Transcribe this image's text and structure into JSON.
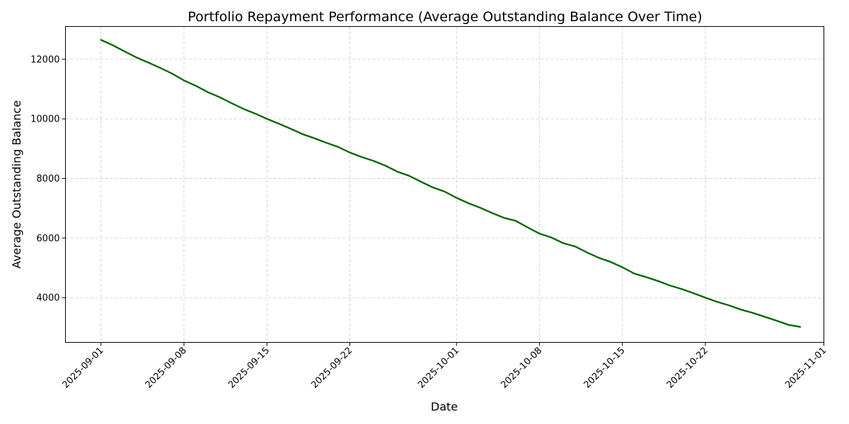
{
  "chart_data": {
    "type": "line",
    "title": "Portfolio Repayment Performance (Average Outstanding Balance Over Time)",
    "xlabel": "Date",
    "ylabel": "Average Outstanding Balance",
    "xlim": [
      "2025-08-29",
      "2025-11-01"
    ],
    "ylim": [
      2500,
      13100
    ],
    "grid": true,
    "line_color": "#006400",
    "x_ticks": [
      "2025-09-01",
      "2025-09-08",
      "2025-09-15",
      "2025-09-22",
      "2025-10-01",
      "2025-10-08",
      "2025-10-15",
      "2025-10-22",
      "2025-11-01"
    ],
    "y_ticks": [
      4000,
      6000,
      8000,
      10000,
      12000
    ],
    "y_tick_labels": [
      "4000",
      "6000",
      "8000",
      "10000",
      "12000"
    ],
    "series": [
      {
        "x": [
          "2025-09-01",
          "2025-09-02",
          "2025-09-03",
          "2025-09-04",
          "2025-09-05",
          "2025-09-06",
          "2025-09-07",
          "2025-09-08",
          "2025-09-09",
          "2025-09-10",
          "2025-09-11",
          "2025-09-12",
          "2025-09-13",
          "2025-09-14",
          "2025-09-15",
          "2025-09-16",
          "2025-09-17",
          "2025-09-18",
          "2025-09-19",
          "2025-09-20",
          "2025-09-21",
          "2025-09-22",
          "2025-09-23",
          "2025-09-24",
          "2025-09-25",
          "2025-09-26",
          "2025-09-27",
          "2025-09-28",
          "2025-09-29",
          "2025-09-30",
          "2025-10-01",
          "2025-10-02",
          "2025-10-03",
          "2025-10-04",
          "2025-10-05",
          "2025-10-06",
          "2025-10-07",
          "2025-10-08",
          "2025-10-09",
          "2025-10-10",
          "2025-10-11",
          "2025-10-12",
          "2025-10-13",
          "2025-10-14",
          "2025-10-15",
          "2025-10-16",
          "2025-10-17",
          "2025-10-18",
          "2025-10-19",
          "2025-10-20",
          "2025-10-21",
          "2025-10-22",
          "2025-10-23",
          "2025-10-24",
          "2025-10-25",
          "2025-10-26",
          "2025-10-27",
          "2025-10-28",
          "2025-10-29",
          "2025-10-30"
        ],
        "values": [
          12650,
          12470,
          12260,
          12060,
          11890,
          11710,
          11520,
          11290,
          11110,
          10900,
          10730,
          10530,
          10340,
          10180,
          10000,
          9840,
          9670,
          9490,
          9350,
          9200,
          9060,
          8870,
          8720,
          8590,
          8430,
          8230,
          8090,
          7890,
          7700,
          7560,
          7350,
          7170,
          7020,
          6840,
          6680,
          6580,
          6360,
          6150,
          6020,
          5830,
          5720,
          5520,
          5340,
          5200,
          5020,
          4810,
          4690,
          4560,
          4410,
          4290,
          4150,
          4000,
          3860,
          3740,
          3600,
          3490,
          3360,
          3230,
          3090,
          3020
        ]
      }
    ]
  }
}
